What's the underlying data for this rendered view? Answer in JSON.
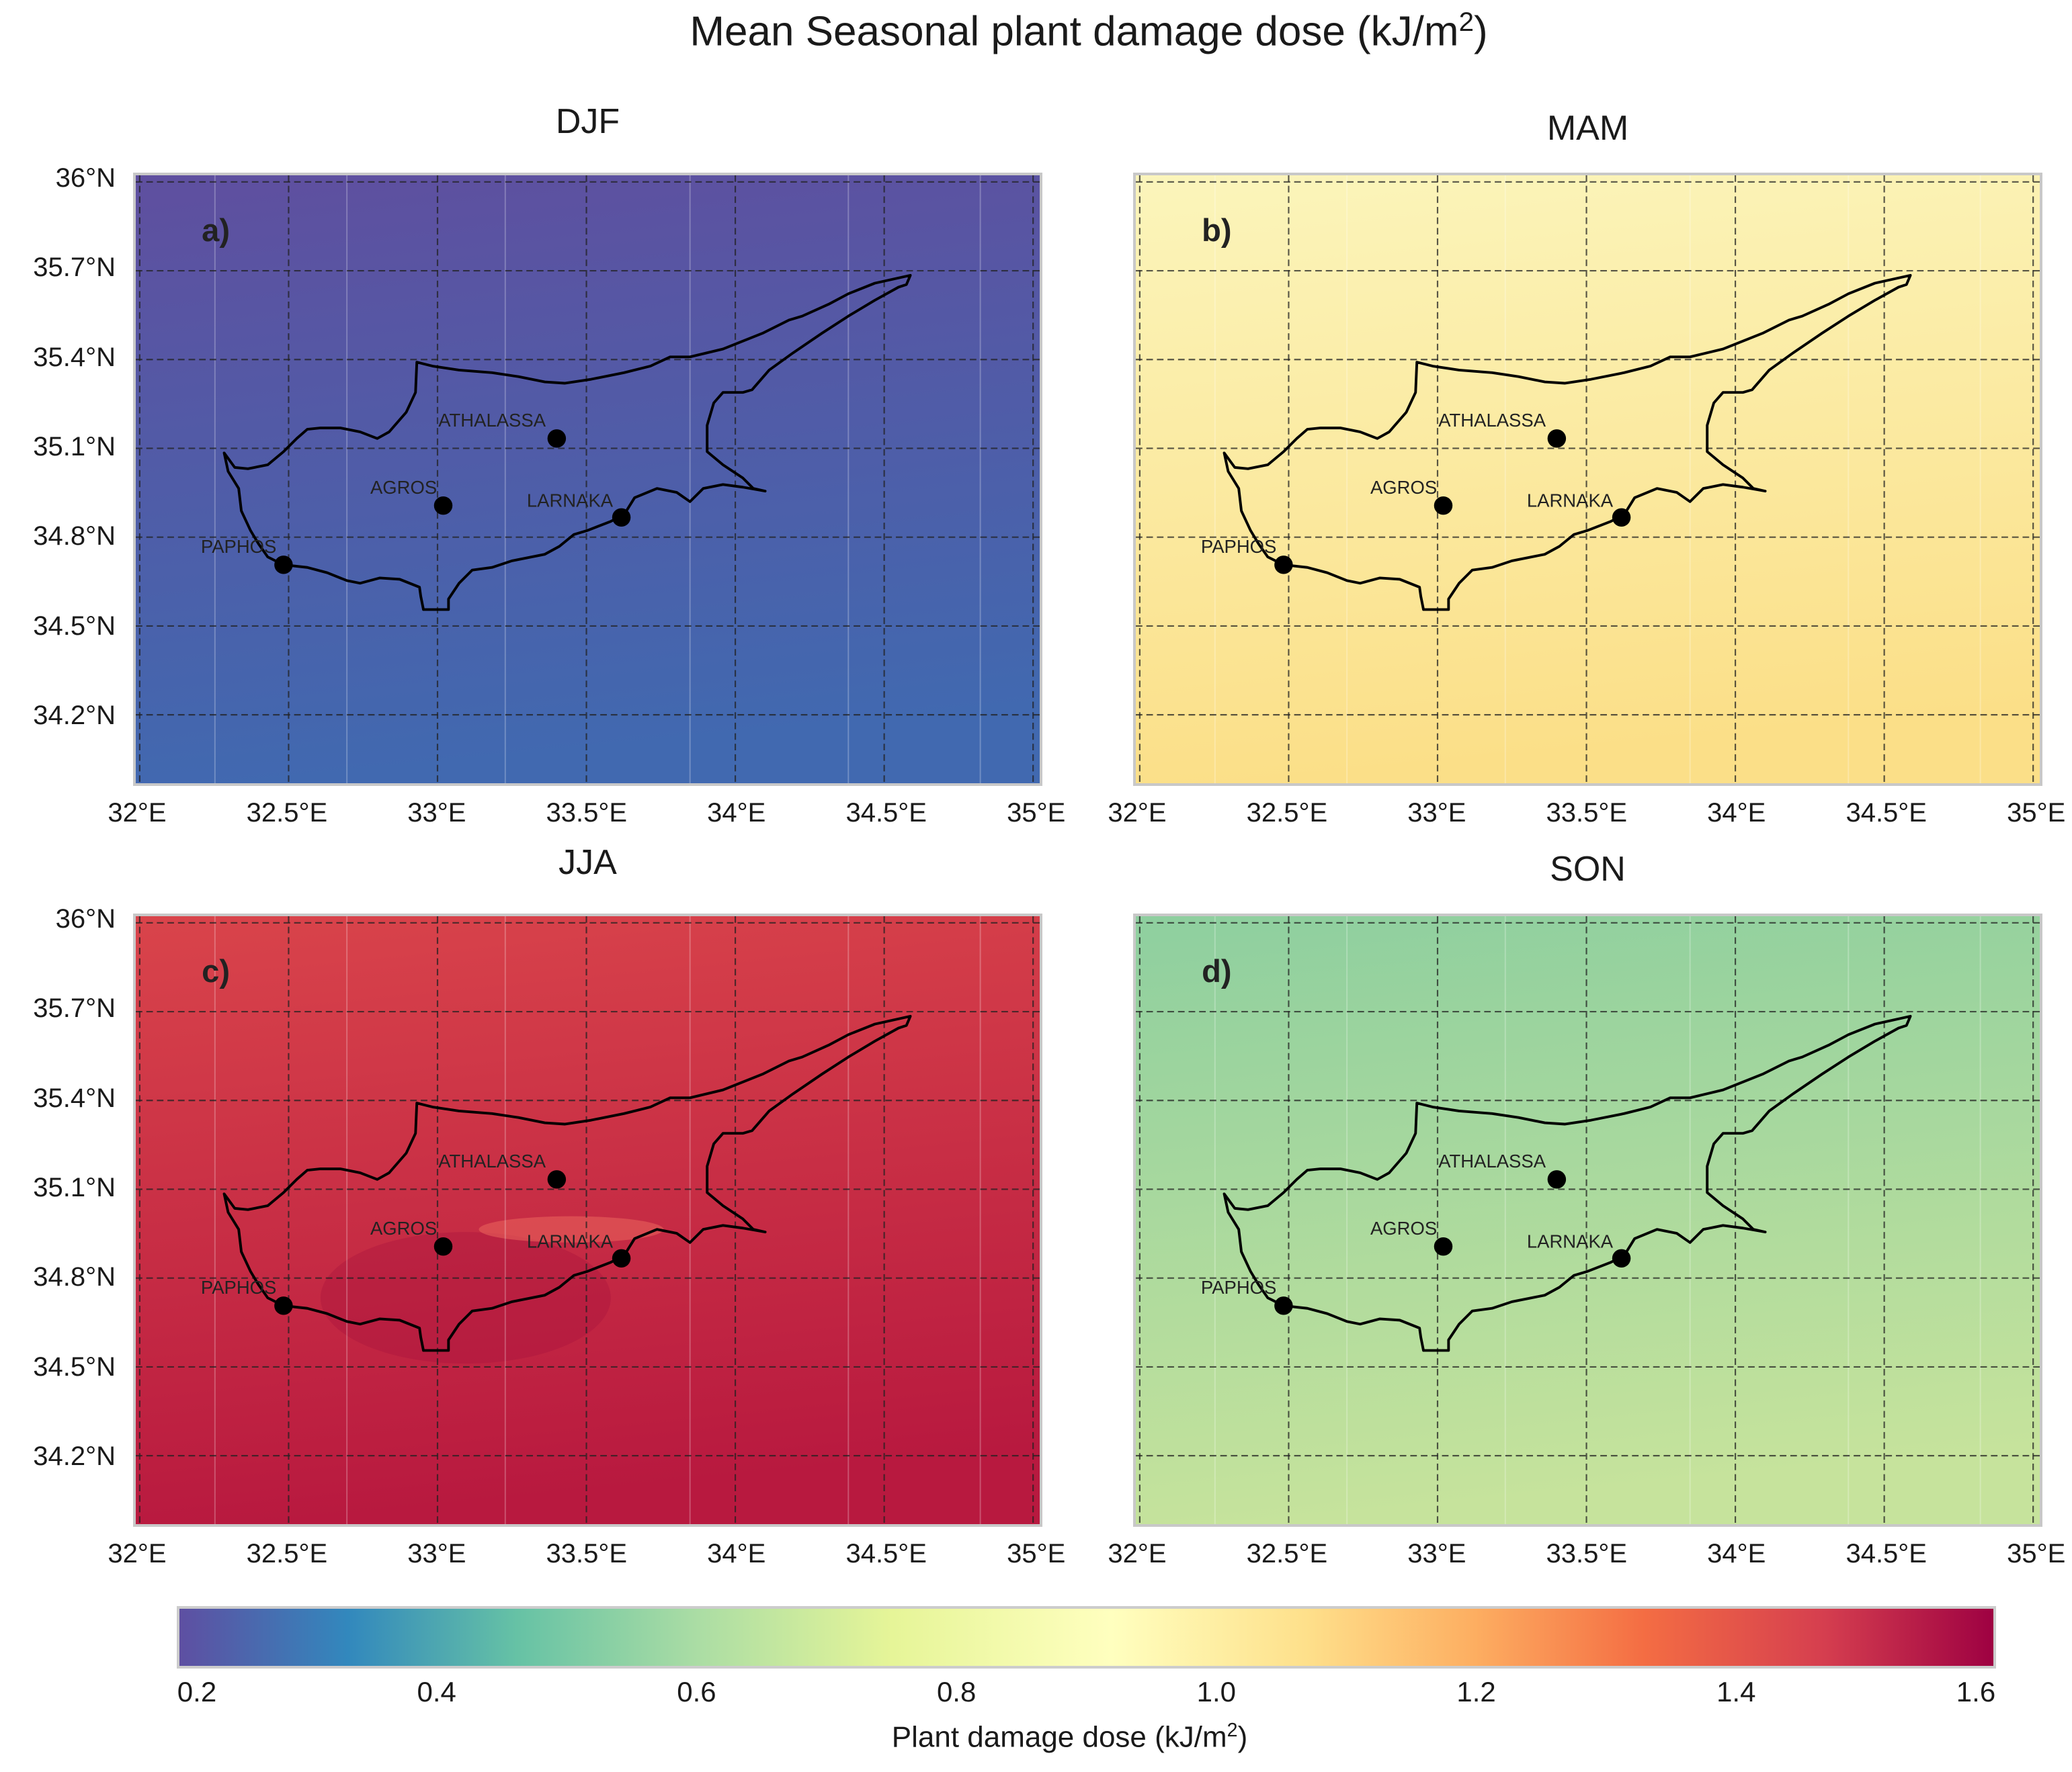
{
  "title": {
    "text": "Mean Seasonal plant damage dose (kJ/m",
    "sup": "2",
    "close": ")"
  },
  "chart_data": {
    "type": "heatmap",
    "title": "Mean Seasonal plant damage dose (kJ/m2)",
    "xlim": [
      32,
      35
    ],
    "ylim": [
      33.97,
      36.02
    ],
    "x_ticks": [
      32,
      32.5,
      33,
      33.5,
      34,
      34.5,
      35
    ],
    "x_tick_labels": [
      "32°E",
      "32.5°E",
      "33°E",
      "33.5°E",
      "34°E",
      "34.5°E",
      "35°E"
    ],
    "y_ticks": [
      36,
      35.7,
      35.4,
      35.1,
      34.8,
      34.5,
      34.2
    ],
    "y_tick_labels": [
      "36°N",
      "35.7°N",
      "35.4°N",
      "35.1°N",
      "34.8°N",
      "34.5°N",
      "34.2°N"
    ],
    "grid": true,
    "panels": [
      {
        "season": "DJF",
        "letter": "a)",
        "approx_value_range": [
          0.2,
          0.3
        ],
        "top_color": "#5f4f9f",
        "bottom_color": "#4169b0"
      },
      {
        "season": "MAM",
        "letter": "b)",
        "approx_value_range": [
          0.95,
          1.1
        ],
        "top_color": "#fbf5bb",
        "bottom_color": "#fbdf88"
      },
      {
        "season": "JJA",
        "letter": "c)",
        "approx_value_range": [
          1.35,
          1.55
        ],
        "top_color": "#d9444b",
        "bottom_color": "#b8193f"
      },
      {
        "season": "SON",
        "letter": "d)",
        "approx_value_range": [
          0.55,
          0.7
        ],
        "top_color": "#8ecf9f",
        "bottom_color": "#c6e39c"
      }
    ],
    "stations": [
      {
        "name": "ATHALASSA",
        "lon": 33.4,
        "lat": 35.15
      },
      {
        "name": "AGROS",
        "lon": 33.02,
        "lat": 34.92
      },
      {
        "name": "LARNAKA",
        "lon": 33.63,
        "lat": 34.88
      },
      {
        "name": "PAPHOS",
        "lon": 32.48,
        "lat": 34.72
      }
    ],
    "colorbar": {
      "label": "Plant damage dose (kJ/m",
      "label_sup": "2",
      "label_close": ")",
      "range": [
        0.2,
        1.6
      ],
      "ticks": [
        0.2,
        0.4,
        0.6,
        0.8,
        1.0,
        1.2,
        1.4,
        1.6
      ],
      "tick_labels": [
        "0.2",
        "0.4",
        "0.6",
        "0.8",
        "1.0",
        "1.2",
        "1.4",
        "1.6"
      ],
      "colormap": "Spectral_r",
      "stops": [
        {
          "v": 0.2,
          "c": "#5e4fa2"
        },
        {
          "v": 0.33,
          "c": "#3288bd"
        },
        {
          "v": 0.46,
          "c": "#66c2a5"
        },
        {
          "v": 0.6,
          "c": "#abdda4"
        },
        {
          "v": 0.75,
          "c": "#e6f598"
        },
        {
          "v": 0.92,
          "c": "#ffffbf"
        },
        {
          "v": 1.07,
          "c": "#fee08b"
        },
        {
          "v": 1.2,
          "c": "#fdae61"
        },
        {
          "v": 1.33,
          "c": "#f46d43"
        },
        {
          "v": 1.47,
          "c": "#d53e4f"
        },
        {
          "v": 1.6,
          "c": "#9e0142"
        }
      ]
    }
  }
}
